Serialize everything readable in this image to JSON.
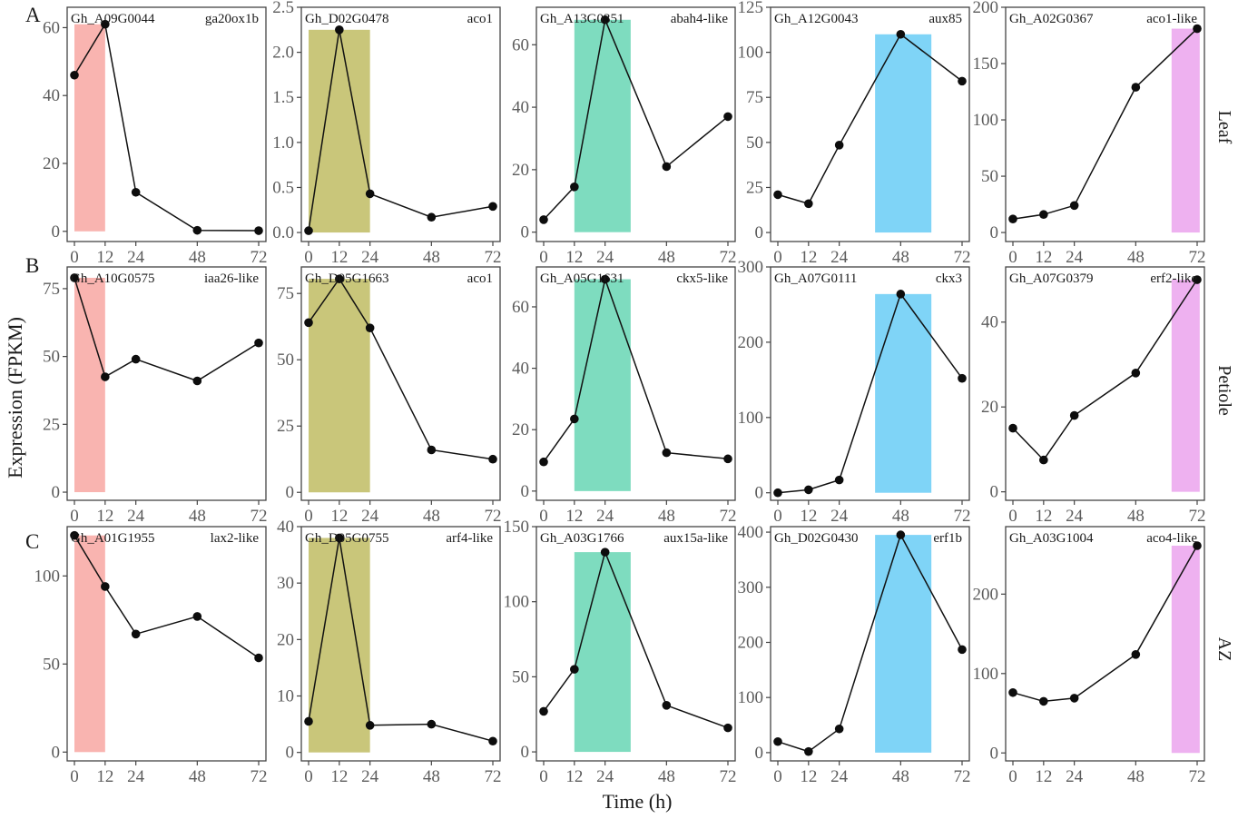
{
  "figure": {
    "y_axis_title": "Expression (FPKM)",
    "x_axis_title": "Time (h)",
    "row_labels": [
      "Leaf",
      "Petiole",
      "AZ"
    ],
    "panel_letters": [
      "A",
      "B",
      "C"
    ],
    "column_highlight_colors": [
      "#f9b4b0",
      "#c9c67a",
      "#7edcbf",
      "#7fd4f7",
      "#eeb1f0"
    ]
  },
  "chart_data": [
    {
      "type": "line",
      "row": "Leaf",
      "gene_id": "Gh_A09G0044",
      "gene_name": "ga20ox1b",
      "x": [
        0,
        12,
        24,
        48,
        72
      ],
      "values": [
        46,
        61,
        11.5,
        0.3,
        0.2
      ],
      "ylim": [
        -3,
        66
      ],
      "yticks": [
        0,
        20,
        40,
        60
      ],
      "ytick_labels": [
        "0",
        "20",
        "40",
        "60"
      ],
      "highlight": [
        0,
        12
      ],
      "xticks": [
        0,
        12,
        24,
        48,
        72
      ],
      "xtick_labels": [
        "0",
        "12",
        "24",
        "48",
        "72"
      ]
    },
    {
      "type": "line",
      "row": "Leaf",
      "gene_id": "Gh_D02G0478",
      "gene_name": "aco1",
      "x": [
        0,
        12,
        24,
        48,
        72
      ],
      "values": [
        0.02,
        2.25,
        0.43,
        0.17,
        0.29
      ],
      "ylim": [
        -0.1,
        2.5
      ],
      "yticks": [
        0,
        0.5,
        1,
        1.5,
        2,
        2.5
      ],
      "ytick_labels": [
        "0.0",
        "0.5",
        "1.0",
        "1.5",
        "2.0",
        "2.5"
      ],
      "highlight": [
        0,
        24
      ],
      "xticks": [
        0,
        12,
        24,
        48,
        72
      ],
      "xtick_labels": [
        "0",
        "12",
        "24",
        "48",
        "72"
      ]
    },
    {
      "type": "line",
      "row": "Leaf",
      "gene_id": "Gh_A13G0351",
      "gene_name": "abah4-like",
      "x": [
        0,
        12,
        24,
        48,
        72
      ],
      "values": [
        4,
        14.5,
        68,
        21,
        37
      ],
      "ylim": [
        -3,
        72
      ],
      "yticks": [
        0,
        20,
        40,
        60
      ],
      "ytick_labels": [
        "0",
        "20",
        "40",
        "60"
      ],
      "highlight": [
        12,
        34
      ],
      "xticks": [
        0,
        12,
        24,
        48,
        72
      ],
      "xtick_labels": [
        "0",
        "12",
        "24",
        "48",
        "72"
      ]
    },
    {
      "type": "line",
      "row": "Leaf",
      "gene_id": "Gh_A12G0043",
      "gene_name": "aux85",
      "x": [
        0,
        12,
        24,
        48,
        72
      ],
      "values": [
        21,
        16,
        48.5,
        110,
        84
      ],
      "ylim": [
        -5,
        125
      ],
      "yticks": [
        0,
        25,
        50,
        75,
        100,
        125
      ],
      "ytick_labels": [
        "0",
        "25",
        "50",
        "75",
        "100",
        "125"
      ],
      "highlight": [
        38,
        60
      ],
      "xticks": [
        0,
        12,
        24,
        48,
        72
      ],
      "xtick_labels": [
        "0",
        "12",
        "24",
        "48",
        "72"
      ]
    },
    {
      "type": "line",
      "row": "Leaf",
      "gene_id": "Gh_A02G0367",
      "gene_name": "aco1-like",
      "x": [
        0,
        12,
        24,
        48,
        72
      ],
      "values": [
        12,
        16,
        24,
        129,
        181
      ],
      "ylim": [
        -8,
        200
      ],
      "yticks": [
        0,
        50,
        100,
        150,
        200
      ],
      "ytick_labels": [
        "0",
        "50",
        "100",
        "150",
        "200"
      ],
      "highlight": [
        62,
        73
      ],
      "xticks": [
        0,
        12,
        24,
        48,
        72
      ],
      "xtick_labels": [
        "0",
        "12",
        "24",
        "48",
        "72"
      ]
    },
    {
      "type": "line",
      "row": "Petiole",
      "gene_id": "Gh_A10G0575",
      "gene_name": "iaa26-like",
      "x": [
        0,
        12,
        24,
        48,
        72
      ],
      "values": [
        79,
        42.5,
        49,
        41,
        55
      ],
      "ylim": [
        -3,
        83
      ],
      "yticks": [
        0,
        25,
        50,
        75
      ],
      "ytick_labels": [
        "0",
        "25",
        "50",
        "75"
      ],
      "highlight": [
        0,
        12
      ],
      "xticks": [
        0,
        12,
        24,
        48,
        72
      ],
      "xtick_labels": [
        "0",
        "12",
        "24",
        "48",
        "72"
      ]
    },
    {
      "type": "line",
      "row": "Petiole",
      "gene_id": "Gh_D05G1663",
      "gene_name": "aco1",
      "x": [
        0,
        12,
        24,
        48,
        72
      ],
      "values": [
        64,
        80.5,
        62,
        16,
        12.5
      ],
      "ylim": [
        -3,
        85
      ],
      "yticks": [
        0,
        25,
        50,
        75
      ],
      "ytick_labels": [
        "0",
        "25",
        "50",
        "75"
      ],
      "highlight": [
        0,
        24
      ],
      "xticks": [
        0,
        12,
        24,
        48,
        72
      ],
      "xtick_labels": [
        "0",
        "12",
        "24",
        "48",
        "72"
      ]
    },
    {
      "type": "line",
      "row": "Petiole",
      "gene_id": "Gh_A05G1631",
      "gene_name": "ckx5-like",
      "x": [
        0,
        12,
        24,
        48,
        72
      ],
      "values": [
        9.5,
        23.5,
        69,
        12.5,
        10.5
      ],
      "ylim": [
        -3,
        73
      ],
      "yticks": [
        0,
        20,
        40,
        60
      ],
      "ytick_labels": [
        "0",
        "20",
        "40",
        "60"
      ],
      "highlight": [
        12,
        34
      ],
      "xticks": [
        0,
        12,
        24,
        48,
        72
      ],
      "xtick_labels": [
        "0",
        "12",
        "24",
        "48",
        "72"
      ]
    },
    {
      "type": "line",
      "row": "Petiole",
      "gene_id": "Gh_A07G0111",
      "gene_name": "ckx3",
      "x": [
        0,
        12,
        24,
        48,
        72
      ],
      "values": [
        0,
        4,
        17,
        264,
        152
      ],
      "ylim": [
        -10,
        300
      ],
      "yticks": [
        0,
        100,
        200,
        300
      ],
      "ytick_labels": [
        "0",
        "100",
        "200",
        "300"
      ],
      "highlight": [
        38,
        60
      ],
      "xticks": [
        0,
        12,
        24,
        48,
        72
      ],
      "xtick_labels": [
        "0",
        "12",
        "24",
        "48",
        "72"
      ]
    },
    {
      "type": "line",
      "row": "Petiole",
      "gene_id": "Gh_A07G0379",
      "gene_name": "erf2-like",
      "x": [
        0,
        12,
        24,
        48,
        72
      ],
      "values": [
        15,
        7.5,
        18,
        28,
        50
      ],
      "ylim": [
        -2,
        53
      ],
      "yticks": [
        0,
        20,
        40
      ],
      "ytick_labels": [
        "0",
        "20",
        "40"
      ],
      "highlight": [
        62,
        73
      ],
      "xticks": [
        0,
        12,
        24,
        48,
        72
      ],
      "xtick_labels": [
        "0",
        "12",
        "24",
        "48",
        "72"
      ]
    },
    {
      "type": "line",
      "row": "AZ",
      "gene_id": "Gh_A01G1955",
      "gene_name": "lax2-like",
      "x": [
        0,
        12,
        24,
        48,
        72
      ],
      "values": [
        123,
        94,
        67,
        77,
        53.5
      ],
      "ylim": [
        -5,
        128
      ],
      "yticks": [
        0,
        50,
        100
      ],
      "ytick_labels": [
        "0",
        "50",
        "100"
      ],
      "highlight": [
        0,
        12
      ],
      "xticks": [
        0,
        12,
        24,
        48,
        72
      ],
      "xtick_labels": [
        "0",
        "12",
        "24",
        "48",
        "72"
      ]
    },
    {
      "type": "line",
      "row": "AZ",
      "gene_id": "Gh_D05G0755",
      "gene_name": "arf4-like",
      "x": [
        0,
        12,
        24,
        48,
        72
      ],
      "values": [
        5.5,
        38,
        4.8,
        5,
        2
      ],
      "ylim": [
        -1.5,
        40
      ],
      "yticks": [
        0,
        10,
        20,
        30,
        40
      ],
      "ytick_labels": [
        "0",
        "10",
        "20",
        "30",
        "40"
      ],
      "highlight": [
        0,
        24
      ],
      "xticks": [
        0,
        12,
        24,
        48,
        72
      ],
      "xtick_labels": [
        "0",
        "12",
        "24",
        "48",
        "72"
      ]
    },
    {
      "type": "line",
      "row": "AZ",
      "gene_id": "Gh_A03G1766",
      "gene_name": "aux15a-like",
      "x": [
        0,
        12,
        24,
        48,
        72
      ],
      "values": [
        27,
        55,
        133,
        31,
        16
      ],
      "ylim": [
        -6,
        150
      ],
      "yticks": [
        0,
        50,
        100,
        150
      ],
      "ytick_labels": [
        "0",
        "50",
        "100",
        "150"
      ],
      "highlight": [
        12,
        34
      ],
      "xticks": [
        0,
        12,
        24,
        48,
        72
      ],
      "xtick_labels": [
        "0",
        "12",
        "24",
        "48",
        "72"
      ]
    },
    {
      "type": "line",
      "row": "AZ",
      "gene_id": "Gh_D02G0430",
      "gene_name": "erf1b",
      "x": [
        0,
        12,
        24,
        48,
        72
      ],
      "values": [
        20,
        2,
        43,
        395,
        187
      ],
      "ylim": [
        -15,
        410
      ],
      "yticks": [
        0,
        100,
        200,
        300,
        400
      ],
      "ytick_labels": [
        "0",
        "100",
        "200",
        "300",
        "400"
      ],
      "highlight": [
        38,
        60
      ],
      "xticks": [
        0,
        12,
        24,
        48,
        72
      ],
      "xtick_labels": [
        "0",
        "12",
        "24",
        "48",
        "72"
      ]
    },
    {
      "type": "line",
      "row": "AZ",
      "gene_id": "Gh_A03G1004",
      "gene_name": "aco4-like",
      "x": [
        0,
        12,
        24,
        48,
        72
      ],
      "values": [
        76,
        65,
        69,
        124,
        261
      ],
      "ylim": [
        -10,
        285
      ],
      "yticks": [
        0,
        100,
        200
      ],
      "ytick_labels": [
        "0",
        "100",
        "200"
      ],
      "highlight": [
        62,
        73
      ],
      "xticks": [
        0,
        12,
        24,
        48,
        72
      ],
      "xtick_labels": [
        "0",
        "12",
        "24",
        "48",
        "72"
      ]
    }
  ]
}
